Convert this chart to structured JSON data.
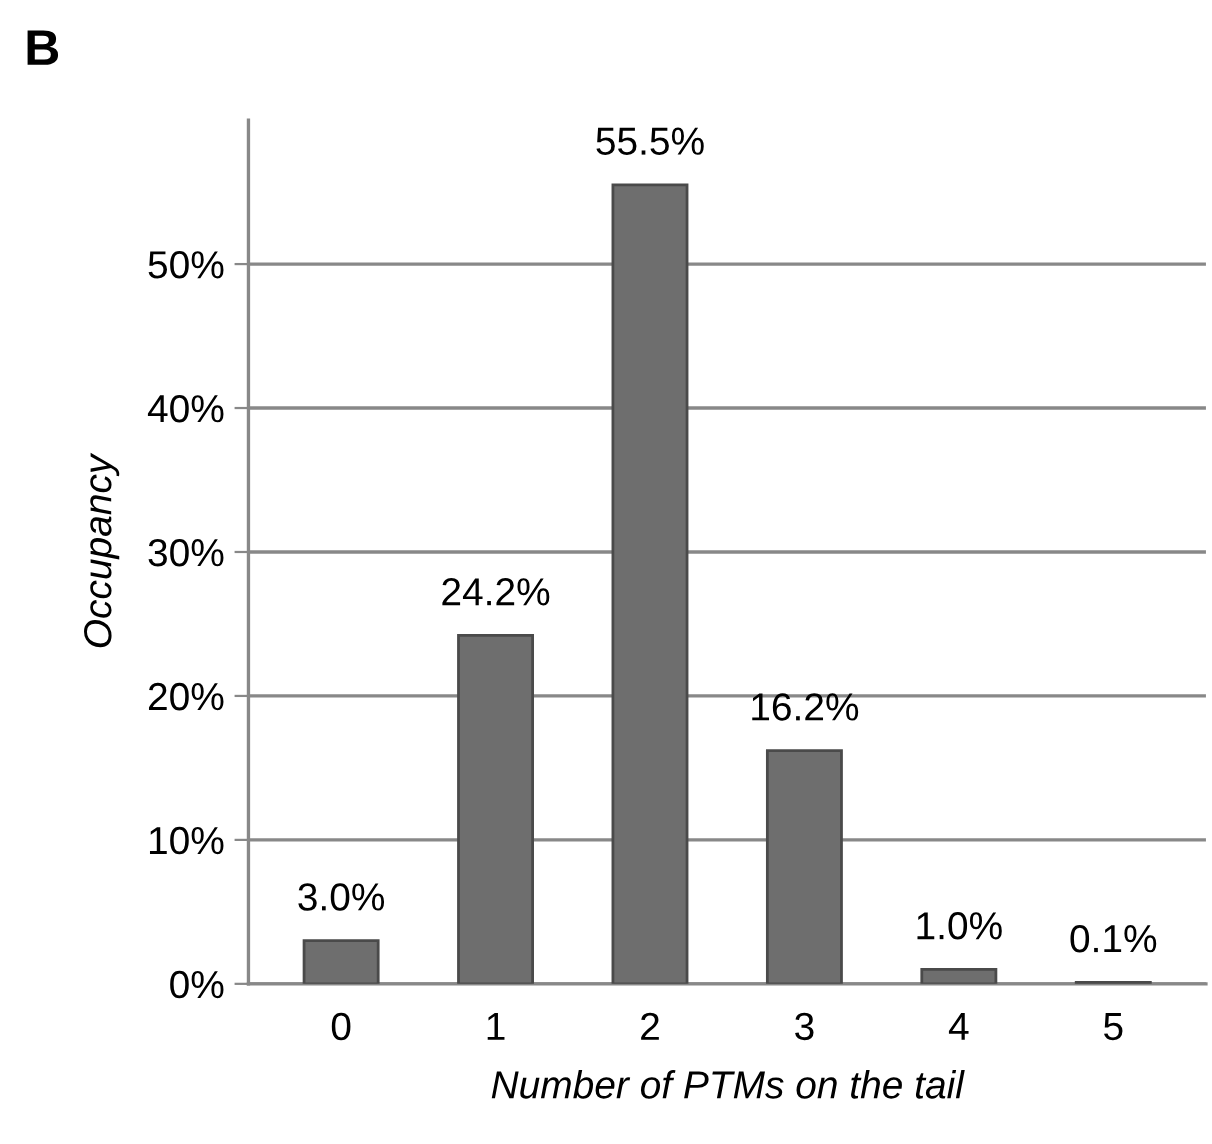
{
  "chart_data": {
    "type": "bar",
    "xlabel": "Number of PTMs on the tail",
    "ylabel": "Occupancy",
    "annotations": [
      "B"
    ],
    "categories": [
      "0",
      "1",
      "2",
      "3",
      "4",
      "5"
    ],
    "values": [
      3.0,
      24.2,
      55.5,
      16.2,
      1.0,
      0.1
    ],
    "value_labels": [
      "3.0%",
      "24.2%",
      "55.5%",
      "16.2%",
      "1.0%",
      "0.1%"
    ],
    "color": "#6e6e6e",
    "ylim": [
      0,
      60
    ],
    "yticks": [
      {
        "value": 0,
        "label": "0%"
      },
      {
        "value": 10,
        "label": "10%"
      },
      {
        "value": 20,
        "label": "20%"
      },
      {
        "value": 30,
        "label": "30%"
      },
      {
        "value": 40,
        "label": "40%"
      },
      {
        "value": 50,
        "label": "50%"
      }
    ],
    "grid": "y",
    "legend": false
  }
}
